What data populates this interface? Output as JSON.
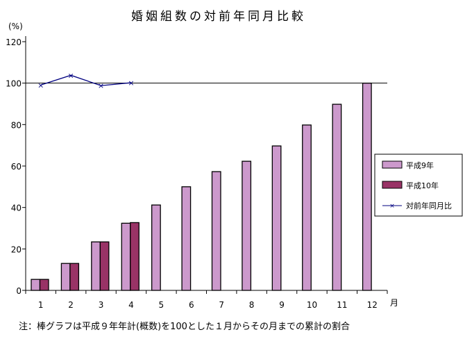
{
  "chart_data": {
    "type": "bar",
    "title": "婚姻組数の対前年同月比較",
    "ylabel": "(%)",
    "xlabel": "月",
    "ylim": [
      0,
      120
    ],
    "yticks": [
      0,
      20,
      40,
      60,
      80,
      100,
      120
    ],
    "categories": [
      "1",
      "2",
      "3",
      "4",
      "5",
      "6",
      "7",
      "8",
      "9",
      "10",
      "11",
      "12"
    ],
    "series": [
      {
        "name": "平成9年",
        "kind": "bar",
        "color": "#cc99cc",
        "values": [
          5.3,
          13.0,
          23.4,
          32.4,
          41.2,
          50.0,
          57.3,
          62.3,
          69.7,
          79.8,
          89.8,
          100.0
        ]
      },
      {
        "name": "平成10年",
        "kind": "bar",
        "color": "#993366",
        "values": [
          5.3,
          13.0,
          23.4,
          32.7,
          null,
          null,
          null,
          null,
          null,
          null,
          null,
          null
        ]
      },
      {
        "name": "対前年同月比",
        "kind": "line",
        "color": "#000080",
        "marker": "x",
        "values": [
          99.1,
          103.8,
          98.8,
          100.2,
          null,
          null,
          null,
          null,
          null,
          null,
          null,
          null
        ]
      }
    ],
    "reference_line": 100,
    "grid": false,
    "legend_position": "right",
    "note": "注：棒グラフは平成９年年計(概数)を100とした１月からその月までの累計の割合"
  }
}
